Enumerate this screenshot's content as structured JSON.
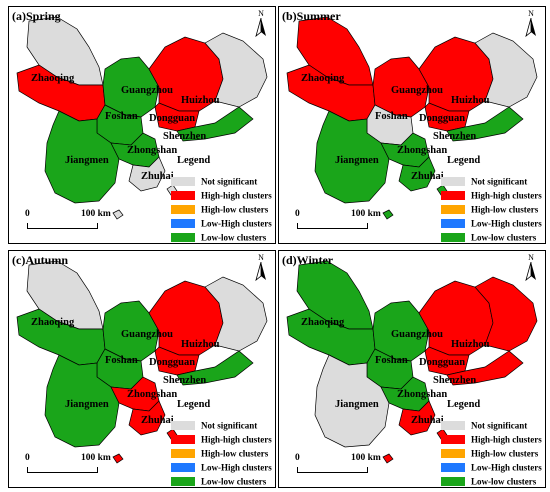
{
  "colors": {
    "not_significant": "#dcdcdc",
    "high_high": "#ff0000",
    "high_low": "#ffa500",
    "low_high": "#1e78ff",
    "low_low": "#1aa51a",
    "boundary": "#000000"
  },
  "north_label": "N",
  "legend": {
    "title": "Legend",
    "items": [
      {
        "label": "Not significant",
        "color": "#dcdcdc"
      },
      {
        "label": "High-high clusters",
        "color": "#ff0000"
      },
      {
        "label": "High-low clusters",
        "color": "#ffa500"
      },
      {
        "label": "Low-High clusters",
        "color": "#1e78ff"
      },
      {
        "label": "Low-low clusters",
        "color": "#1aa51a"
      }
    ]
  },
  "scale": {
    "start": "0",
    "end": "100 km"
  },
  "panels": [
    {
      "title": "(a)Spring",
      "cities": {
        "zhaoqing": "Zhaoqing",
        "guangzhou": "Guangzhou",
        "huizhou": "Huizhou",
        "foshan": "Foshan",
        "dongguan": "Dongguan",
        "shenzhen": "Shenzhen",
        "zhongshan": "Zhongshan",
        "jiangmen": "Jiangmen",
        "zhuhai": "Zhuhai"
      },
      "regions": {
        "zhaoqing_north": "not_significant",
        "zhaoqing_south": "high_high",
        "guangzhou": "low_low",
        "huizhou": "high_high",
        "huizhou_east": "not_significant",
        "dongguan": "high_high",
        "foshan": "low_low",
        "jiangmen": "low_low",
        "zhongshan": "low_low",
        "shenzhen": "low_low",
        "zhuhai": "not_significant"
      }
    },
    {
      "title": "(b)Summer",
      "cities": {
        "zhaoqing": "Zhaoqing",
        "guangzhou": "Guangzhou",
        "huizhou": "Huizhou",
        "foshan": "Foshan",
        "dongguan": "Dongguan",
        "shenzhen": "Shenzhen",
        "zhongshan": "Zhongshan",
        "jiangmen": "Jiangmen",
        "zhuhai": "Zhuhai"
      },
      "regions": {
        "zhaoqing_north": "high_high",
        "zhaoqing_south": "high_high",
        "guangzhou": "high_high",
        "huizhou": "high_high",
        "huizhou_east": "not_significant",
        "dongguan": "high_high",
        "foshan": "not_significant",
        "jiangmen": "low_low",
        "zhongshan": "low_low",
        "shenzhen": "low_low",
        "zhuhai": "low_low"
      }
    },
    {
      "title": "(c)Autumn",
      "cities": {
        "zhaoqing": "Zhaoqing",
        "guangzhou": "Guangzhou",
        "huizhou": "Huizhou",
        "foshan": "Foshan",
        "dongguan": "Dongguan",
        "shenzhen": "Shenzhen",
        "zhongshan": "Zhongshan",
        "jiangmen": "Jiangmen",
        "zhuhai": "Zhuhai"
      },
      "regions": {
        "zhaoqing_north": "not_significant",
        "zhaoqing_south": "low_low",
        "guangzhou": "low_low",
        "huizhou": "high_high",
        "huizhou_east": "not_significant",
        "dongguan": "high_high",
        "foshan": "low_low",
        "jiangmen": "low_low",
        "zhongshan": "high_high",
        "shenzhen": "low_low",
        "zhuhai": "high_high"
      }
    },
    {
      "title": "(d)Winter",
      "cities": {
        "zhaoqing": "Zhaoqing",
        "guangzhou": "Guangzhou",
        "huizhou": "Huizhou",
        "foshan": "Foshan",
        "dongguan": "Dongguan",
        "shenzhen": "Shenzhen",
        "zhongshan": "Zhongshan",
        "jiangmen": "Jiangmen",
        "zhuhai": "Zhuhai"
      },
      "regions": {
        "zhaoqing_north": "low_low",
        "zhaoqing_south": "low_low",
        "guangzhou": "low_low",
        "huizhou": "high_high",
        "huizhou_east": "high_high",
        "dongguan": "high_high",
        "foshan": "low_low",
        "jiangmen": "not_significant",
        "zhongshan": "low_low",
        "shenzhen": "high_high",
        "zhuhai": "high_high"
      }
    }
  ]
}
